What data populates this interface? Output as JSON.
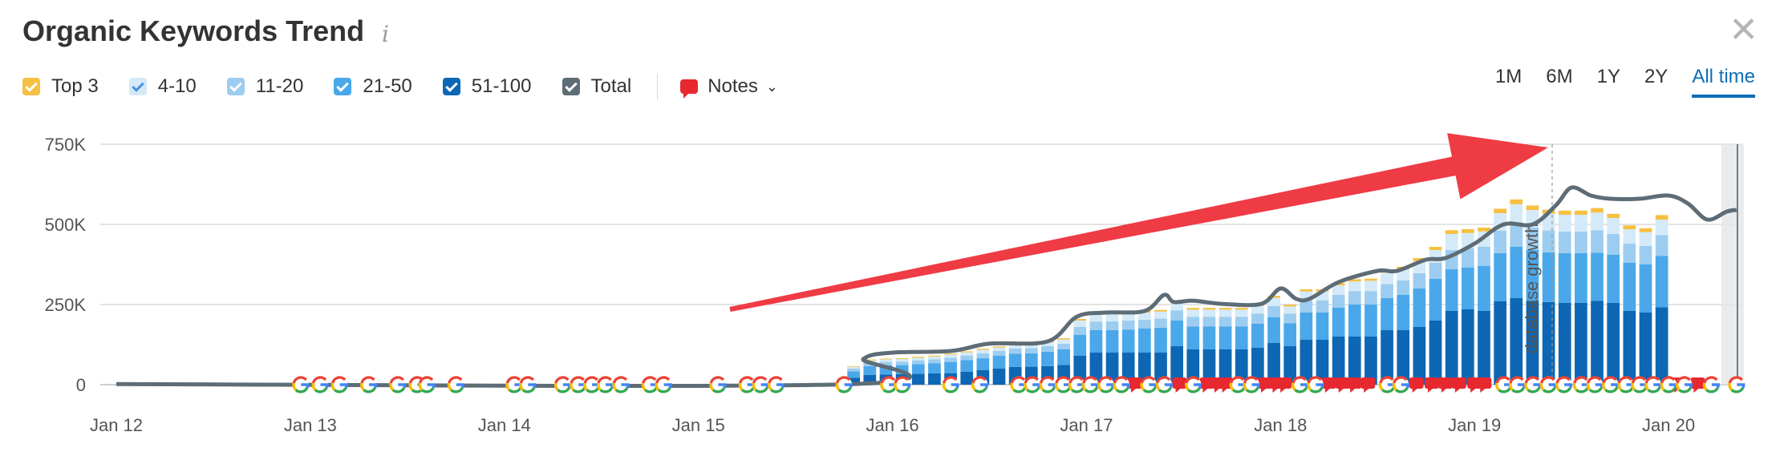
{
  "header": {
    "title": "Organic Keywords Trend",
    "info_icon": "info-icon",
    "close_icon": "close-icon"
  },
  "legend": [
    {
      "label": "Top 3",
      "color": "#f6c042"
    },
    {
      "label": "4-10",
      "color": "#d4eaf8"
    },
    {
      "label": "11-20",
      "color": "#9ccdf0"
    },
    {
      "label": "21-50",
      "color": "#4aa8ea"
    },
    {
      "label": "51-100",
      "color": "#0e67b4"
    },
    {
      "label": "Total",
      "color": "#5e6c76"
    }
  ],
  "notes": {
    "label": "Notes",
    "icon": "note-bubble-icon"
  },
  "periods": [
    {
      "label": "1M",
      "active": false
    },
    {
      "label": "6M",
      "active": false
    },
    {
      "label": "1Y",
      "active": false
    },
    {
      "label": "2Y",
      "active": false
    },
    {
      "label": "All time",
      "active": true
    }
  ],
  "chart_data": {
    "type": "bar",
    "stacked": true,
    "annotation_text": "database growth",
    "x_tick_labels": [
      "Jan 12",
      "Jan 13",
      "Jan 14",
      "Jan 15",
      "Jan 16",
      "Jan 17",
      "Jan 18",
      "Jan 19",
      "Jan 20"
    ],
    "y_tick_labels": [
      "0",
      "250K",
      "500K",
      "750K"
    ],
    "ylim": [
      0,
      750000
    ],
    "xlim": [
      2012.0,
      2020.38
    ],
    "grid": true,
    "period_start": 2015.8,
    "period_step": 0.0833,
    "series": [
      {
        "name": "51-100",
        "color": "#0e67b4",
        "values": [
          22000,
          30000,
          32000,
          33000,
          34000,
          35000,
          36000,
          40000,
          45000,
          50000,
          55000,
          56000,
          58000,
          62000,
          90000,
          100000,
          100000,
          100000,
          100000,
          100000,
          120000,
          110000,
          110000,
          110000,
          110000,
          115000,
          130000,
          120000,
          140000,
          140000,
          150000,
          150000,
          150000,
          170000,
          170000,
          180000,
          200000,
          230000,
          235000,
          230000,
          260000,
          270000,
          262000,
          258000,
          255000,
          255000,
          262000,
          255000,
          230000,
          225000,
          242000
        ]
      },
      {
        "name": "21-50",
        "color": "#4aa8ea",
        "values": [
          20000,
          28000,
          28000,
          28000,
          30000,
          32000,
          35000,
          37000,
          38000,
          40000,
          42000,
          42000,
          45000,
          48000,
          65000,
          70000,
          70000,
          72000,
          75000,
          78000,
          80000,
          72000,
          72000,
          72000,
          72000,
          75000,
          80000,
          72000,
          85000,
          85000,
          90000,
          100000,
          100000,
          100000,
          110000,
          120000,
          130000,
          130000,
          130000,
          140000,
          150000,
          160000,
          158000,
          155000,
          155000,
          155000,
          150000,
          150000,
          150000,
          150000,
          160000
        ]
      },
      {
        "name": "11-20",
        "color": "#9ccdf0",
        "values": [
          8000,
          10000,
          11000,
          11000,
          12000,
          12000,
          13000,
          14000,
          15000,
          15000,
          16000,
          16000,
          17000,
          18000,
          25000,
          27000,
          28000,
          28000,
          28000,
          28000,
          32000,
          30000,
          30000,
          30000,
          30000,
          32000,
          35000,
          30000,
          38000,
          38000,
          40000,
          42000,
          42000,
          44000,
          45000,
          48000,
          50000,
          60000,
          60000,
          60000,
          70000,
          75000,
          70000,
          68000,
          68000,
          68000,
          70000,
          65000,
          60000,
          58000,
          65000
        ]
      },
      {
        "name": "4-10",
        "color": "#d4eaf8",
        "values": [
          6000,
          8000,
          8000,
          8000,
          8500,
          9000,
          10000,
          10000,
          11000,
          11000,
          12000,
          12000,
          12000,
          13000,
          20000,
          21000,
          22000,
          22000,
          22000,
          22000,
          25000,
          22000,
          22000,
          22000,
          22000,
          24000,
          26000,
          22000,
          28000,
          28000,
          30000,
          30000,
          32000,
          35000,
          35000,
          38000,
          40000,
          50000,
          48000,
          48000,
          55000,
          58000,
          55000,
          52000,
          52000,
          52000,
          55000,
          50000,
          45000,
          43000,
          48000
        ]
      },
      {
        "name": "Top 3",
        "color": "#f6c042",
        "values": [
          2000,
          2500,
          2500,
          2500,
          3000,
          3000,
          3000,
          3000,
          3500,
          3500,
          4000,
          4000,
          4000,
          4000,
          5000,
          5000,
          5000,
          5000,
          5000,
          5000,
          6000,
          5500,
          5500,
          5500,
          5500,
          6000,
          6000,
          5500,
          6500,
          6500,
          7000,
          7000,
          7000,
          8000,
          8000,
          9000,
          10000,
          12000,
          12000,
          12000,
          14000,
          15000,
          14000,
          13000,
          13000,
          13000,
          14000,
          13000,
          12000,
          12000,
          14000
        ]
      }
    ],
    "total_line": {
      "name": "Total",
      "x": [
        2012.0,
        2015.8,
        2015.85,
        2016.0,
        2016.3,
        2016.5,
        2016.8,
        2016.95,
        2017.1,
        2017.3,
        2017.4,
        2017.45,
        2017.55,
        2017.7,
        2017.9,
        2018.0,
        2018.08,
        2018.15,
        2018.3,
        2018.5,
        2018.6,
        2018.75,
        2018.85,
        2019.0,
        2019.15,
        2019.3,
        2019.42,
        2019.5,
        2019.6,
        2019.7,
        2019.85,
        2020.0,
        2020.1,
        2020.2,
        2020.3,
        2020.35
      ],
      "y": [
        2000,
        2000,
        80000,
        100000,
        105000,
        128000,
        135000,
        212000,
        225000,
        230000,
        280000,
        258000,
        262000,
        252000,
        252000,
        300000,
        268000,
        268000,
        320000,
        355000,
        355000,
        390000,
        395000,
        440000,
        500000,
        500000,
        560000,
        615000,
        590000,
        580000,
        580000,
        590000,
        565000,
        515000,
        540000,
        545000
      ]
    },
    "google_update_markers_x": [
      2012.95,
      2013.05,
      2013.15,
      2013.3,
      2013.45,
      2013.55,
      2013.6,
      2013.75,
      2014.05,
      2014.12,
      2014.3,
      2014.38,
      2014.45,
      2014.52,
      2014.6,
      2014.75,
      2014.82,
      2015.1,
      2015.25,
      2015.32,
      2015.4,
      2015.75,
      2015.98,
      2016.05,
      2016.3,
      2016.45,
      2016.65,
      2016.72,
      2016.8,
      2016.88,
      2016.95,
      2017.02,
      2017.1,
      2017.18,
      2017.32,
      2017.4,
      2017.55,
      2017.78,
      2017.85,
      2018.1,
      2018.18,
      2018.55,
      2018.62,
      2019.15,
      2019.22,
      2019.3,
      2019.38,
      2019.46,
      2019.55,
      2019.62,
      2019.7,
      2019.78,
      2019.85,
      2019.92,
      2020.0,
      2020.08,
      2020.22,
      2020.35
    ],
    "note_markers_x": [
      2017.25,
      2017.48,
      2017.62,
      2017.68,
      2017.72,
      2017.92,
      2017.98,
      2018.02,
      2018.25,
      2018.32,
      2018.38,
      2018.45,
      2018.7,
      2018.78,
      2018.85,
      2018.92,
      2019.0,
      2019.05,
      2020.05,
      2020.15
    ],
    "annotation_x": 2019.4,
    "highlight_x": 2020.33
  }
}
